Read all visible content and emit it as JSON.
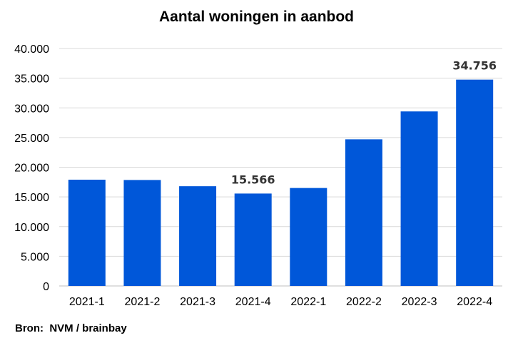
{
  "chart_data": {
    "type": "bar",
    "title": "Aantal woningen in aanbod",
    "categories": [
      "2021-1",
      "2021-2",
      "2021-3",
      "2021-4",
      "2022-1",
      "2022-2",
      "2022-3",
      "2022-4"
    ],
    "values": [
      17900,
      17850,
      16800,
      15566,
      16500,
      24700,
      29400,
      34756
    ],
    "data_labels": [
      null,
      null,
      null,
      "15.566",
      null,
      null,
      null,
      "34.756"
    ],
    "ylim": [
      0,
      40000
    ],
    "yticks": [
      0,
      5000,
      10000,
      15000,
      20000,
      25000,
      30000,
      35000,
      40000
    ],
    "ytick_labels": [
      "0",
      "5.000",
      "10.000",
      "15.000",
      "20.000",
      "25.000",
      "30.000",
      "35.000",
      "40.000"
    ],
    "xlabel": "",
    "ylabel": "",
    "grid": true,
    "legend": "none",
    "bar_color": "#0057D9",
    "grid_color": "#D9D9D9"
  },
  "source": "Bron:  NVM / brainbay"
}
